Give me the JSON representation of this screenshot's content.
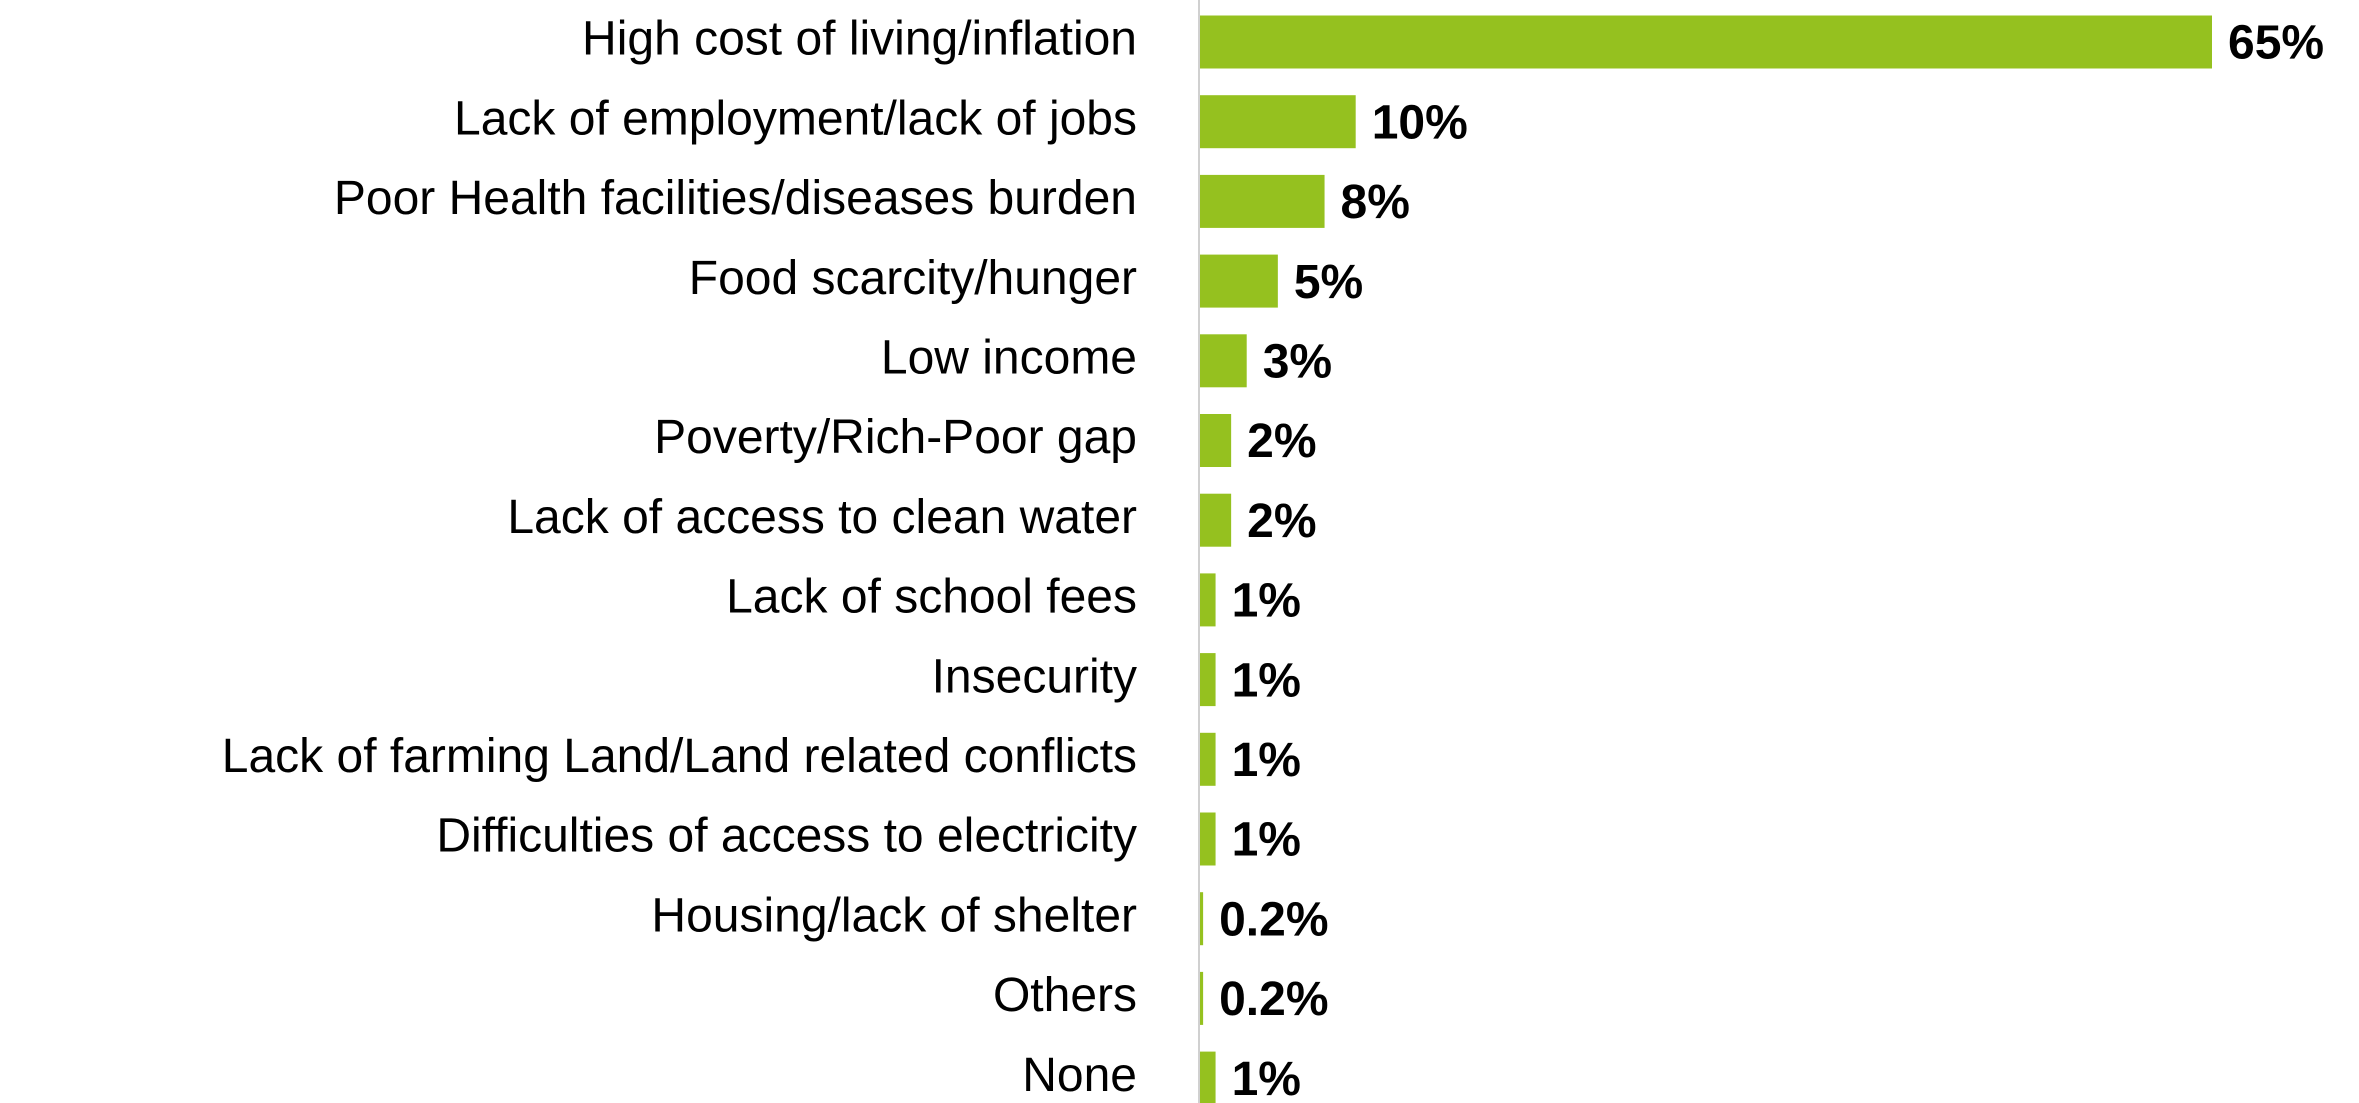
{
  "chart_data": {
    "type": "bar",
    "orientation": "horizontal",
    "color": "#95c11f",
    "categories": [
      "High cost of living/inflation",
      "Lack of employment/lack of jobs",
      "Poor Health facilities/diseases burden",
      "Food scarcity/hunger",
      "Low income",
      "Poverty/Rich-Poor gap",
      "Lack of access to clean water",
      "Lack of school fees",
      "Insecurity",
      "Lack of farming Land/Land related conflicts",
      "Difficulties of access to electricity",
      "Housing/lack of shelter",
      "Others",
      "None"
    ],
    "values": [
      65,
      10,
      8,
      5,
      3,
      2,
      2,
      1,
      1,
      1,
      1,
      0.2,
      0.2,
      1
    ],
    "value_labels": [
      "65%",
      "10%",
      "8%",
      "5%",
      "3%",
      "2%",
      "2%",
      "1%",
      "1%",
      "1%",
      "1%",
      "0.2%",
      "0.2%",
      "1%"
    ]
  }
}
